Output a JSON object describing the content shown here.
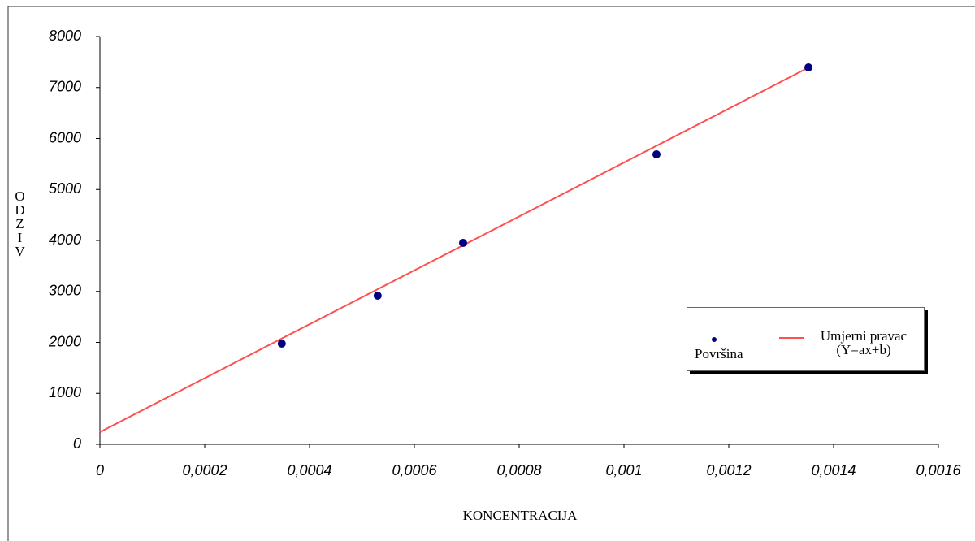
{
  "chart_data": {
    "type": "scatter",
    "xlabel": "KONCENTRACIJA",
    "ylabel": "ODZIV",
    "xlim": [
      0,
      0.0016
    ],
    "xticks": [
      0,
      {
        "value": 0.0002,
        "label": "0,0002"
      },
      {
        "value": 0.0004,
        "label": "0,0004"
      },
      {
        "value": 0.0006,
        "label": "0,0006"
      },
      {
        "value": 0.0008,
        "label": "0,0008"
      },
      {
        "value": 0.001,
        "label": "0,001"
      },
      {
        "value": 0.0012,
        "label": "0,0012"
      },
      {
        "value": 0.0014,
        "label": "0,0014"
      },
      {
        "value": 0.0016,
        "label": "0,0016"
      }
    ],
    "ylim": [
      0,
      8000
    ],
    "yticks": [
      0,
      1000,
      2000,
      3000,
      4000,
      5000,
      6000,
      7000,
      8000
    ],
    "grid": false,
    "legend": "right",
    "series": [
      {
        "name": "Površina",
        "type": "scatter",
        "color": "#000080",
        "x": [
          0.000347,
          0.00053,
          0.000693,
          0.001062,
          0.001352
        ],
        "values": [
          1976,
          2916,
          3952,
          5689,
          7394
        ]
      },
      {
        "name": "Umjerni pravac (Y=ax+b)",
        "type": "line",
        "color": "#ff5050",
        "x": [
          0,
          0.001352
        ],
        "values": [
          240,
          7390
        ]
      }
    ]
  }
}
